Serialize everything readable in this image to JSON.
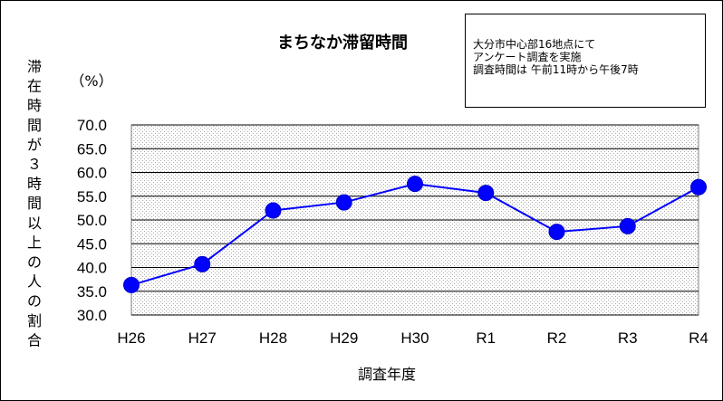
{
  "chart_data": {
    "type": "line",
    "title": "まちなか滞留時間",
    "unit_label": "（%）",
    "ylabel": "滞在時間が３時間以上の人の割合",
    "xlabel": "調査年度",
    "categories": [
      "H26",
      "H27",
      "H28",
      "H29",
      "H30",
      "R1",
      "R2",
      "R3",
      "R4"
    ],
    "series": [
      {
        "values": [
          36.3,
          40.7,
          52.0,
          53.7,
          57.6,
          55.7,
          47.5,
          48.7,
          56.9
        ]
      }
    ],
    "ylim": [
      30.0,
      70.0
    ],
    "ytick_step": 5.0,
    "yticks": [
      "70.0",
      "65.0",
      "60.0",
      "55.0",
      "50.0",
      "45.0",
      "40.0",
      "35.0",
      "30.0"
    ],
    "grid": true,
    "line_color": "#0000ff",
    "marker_color": "#0000ff",
    "plot_background": "dotted light gray"
  },
  "note": {
    "lines": [
      "大分市中心部16地点にて",
      "アンケート調査を実施",
      "調査時間は 午前11時から午後7時"
    ]
  }
}
